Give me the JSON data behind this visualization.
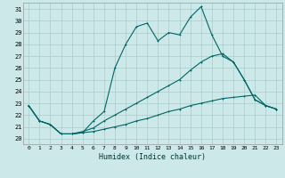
{
  "xlabel": "Humidex (Indice chaleur)",
  "bg_color": "#cde8e8",
  "grid_color": "#aacccc",
  "line_color": "#006666",
  "xlim": [
    -0.5,
    23.5
  ],
  "ylim": [
    19.5,
    31.5
  ],
  "yticks": [
    20,
    21,
    22,
    23,
    24,
    25,
    26,
    27,
    28,
    29,
    30,
    31
  ],
  "xticks": [
    0,
    1,
    2,
    3,
    4,
    5,
    6,
    7,
    8,
    9,
    10,
    11,
    12,
    13,
    14,
    15,
    16,
    17,
    18,
    19,
    20,
    21,
    22,
    23
  ],
  "series1_x": [
    0,
    1,
    2,
    3,
    4,
    5,
    6,
    7,
    8,
    9,
    10,
    11,
    12,
    13,
    14,
    15,
    16,
    17,
    18,
    19,
    20,
    21,
    22,
    23
  ],
  "series1_y": [
    22.8,
    21.5,
    21.2,
    20.4,
    20.4,
    20.5,
    20.6,
    20.8,
    21.0,
    21.2,
    21.5,
    21.7,
    22.0,
    22.3,
    22.5,
    22.8,
    23.0,
    23.2,
    23.4,
    23.5,
    23.6,
    23.7,
    22.8,
    22.5
  ],
  "series2_x": [
    0,
    1,
    2,
    3,
    4,
    5,
    6,
    7,
    8,
    9,
    10,
    11,
    12,
    13,
    14,
    15,
    16,
    17,
    18,
    19,
    20,
    21,
    22,
    23
  ],
  "series2_y": [
    22.8,
    21.5,
    21.2,
    20.4,
    20.4,
    20.5,
    21.5,
    22.3,
    26.0,
    28.0,
    29.5,
    29.8,
    28.3,
    29.0,
    28.8,
    30.3,
    31.2,
    28.8,
    27.0,
    26.5,
    25.0,
    23.3,
    22.8,
    22.5
  ],
  "series3_x": [
    0,
    1,
    2,
    3,
    4,
    5,
    6,
    7,
    8,
    9,
    10,
    11,
    12,
    13,
    14,
    15,
    16,
    17,
    18,
    19,
    20,
    21,
    22,
    23
  ],
  "series3_y": [
    22.8,
    21.5,
    21.2,
    20.4,
    20.4,
    20.6,
    20.9,
    21.5,
    22.0,
    22.5,
    23.0,
    23.5,
    24.0,
    24.5,
    25.0,
    25.8,
    26.5,
    27.0,
    27.2,
    26.5,
    25.0,
    23.3,
    22.8,
    22.5
  ]
}
